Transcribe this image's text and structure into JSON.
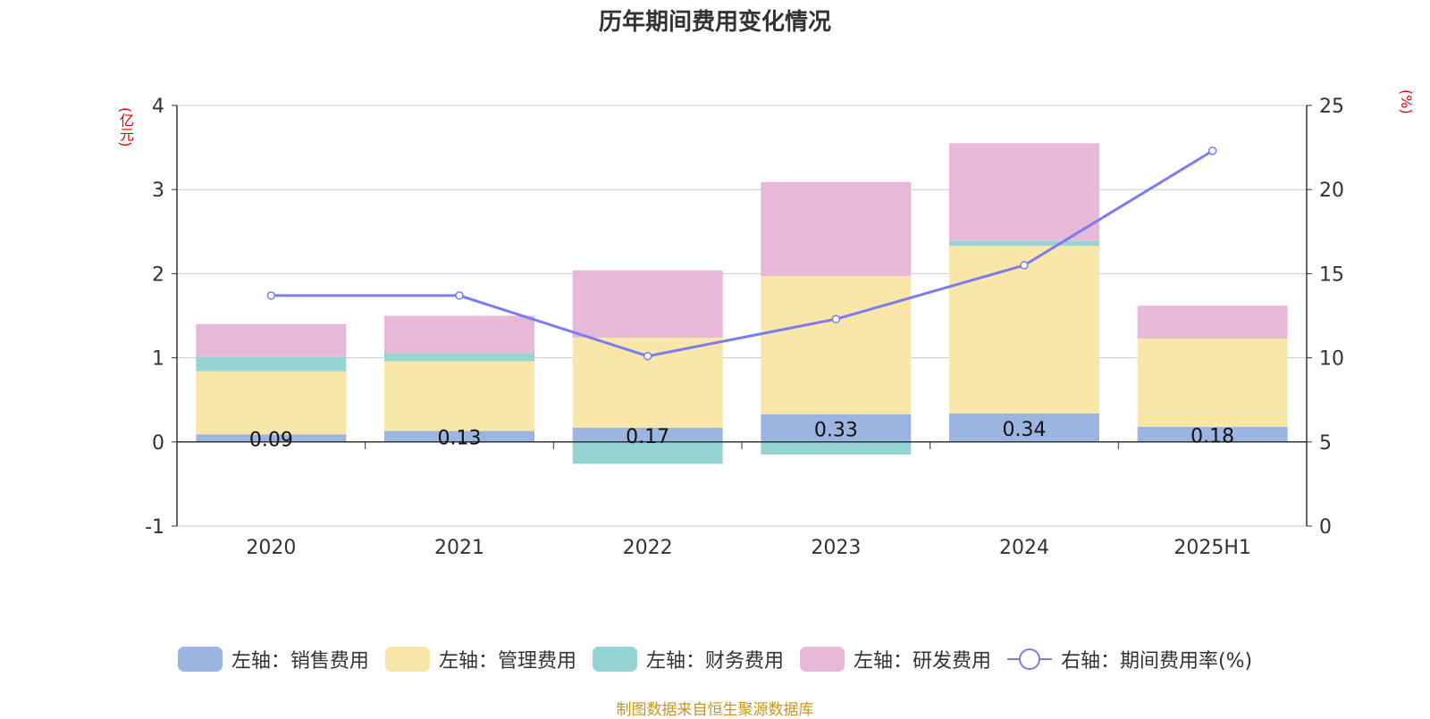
{
  "title": "历年期间费用变化情况",
  "source": "制图数据来自恒生聚源数据库",
  "chart_data": {
    "type": "bar",
    "stacked": true,
    "categories": [
      "2020",
      "2021",
      "2022",
      "2023",
      "2024",
      "2025H1"
    ],
    "left_axis": {
      "unit": "(亿元)",
      "ylim": [
        -1,
        4
      ],
      "ticks": [
        "-1",
        "0",
        "1",
        "2",
        "3",
        "4"
      ]
    },
    "right_axis": {
      "unit": "(%)",
      "ylim": [
        0,
        25
      ],
      "ticks": [
        "0",
        "5",
        "10",
        "15",
        "20",
        "25"
      ]
    },
    "series": [
      {
        "name": "左轴：销售费用",
        "color": "#9bb5e0",
        "values": [
          0.09,
          0.13,
          0.17,
          0.33,
          0.34,
          0.18
        ],
        "labels": [
          "0.09",
          "0.13",
          "0.17",
          "0.33",
          "0.34",
          "0.18"
        ]
      },
      {
        "name": "左轴：管理费用",
        "color": "#f8e7a8",
        "values": [
          0.75,
          0.83,
          1.07,
          1.64,
          1.99,
          1.05
        ]
      },
      {
        "name": "左轴：财务费用",
        "color": "#96d4d4",
        "values": [
          0.17,
          0.09,
          -0.26,
          -0.15,
          0.06,
          0.0
        ]
      },
      {
        "name": "左轴：研发费用",
        "color": "#e8b8d8",
        "values": [
          0.39,
          0.45,
          0.8,
          1.12,
          1.16,
          0.39
        ]
      }
    ],
    "line": {
      "name": "右轴：期间费用率(%)",
      "color": "#7b7cf2",
      "axis": "right",
      "values": [
        13.7,
        13.7,
        10.1,
        12.3,
        15.5,
        22.3
      ]
    },
    "grid": true,
    "legend_position": "bottom"
  }
}
